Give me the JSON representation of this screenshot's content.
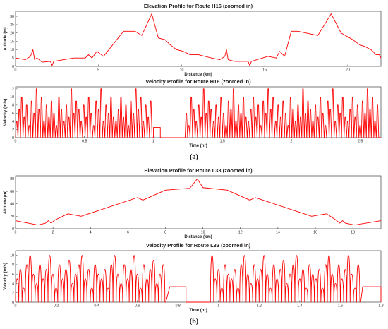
{
  "subfigure_labels": [
    "(a)",
    "(b)"
  ],
  "colors": {
    "series": "#ff0000",
    "axis": "#222222"
  },
  "chart_data": [
    {
      "type": "line",
      "title": "Elevation Profile for Route H16 (zoomed in)",
      "xlabel": "Distance (km)",
      "ylabel": "Altitude (m)",
      "xlim": [
        0,
        22
      ],
      "ylim": [
        0,
        33
      ],
      "xticks": [
        0,
        5,
        10,
        15,
        20
      ],
      "yticks": [
        0,
        5,
        10,
        15,
        20,
        25,
        30
      ],
      "grid": false,
      "series": [
        {
          "x": [
            0,
            0.6,
            0.9,
            1.05,
            1.15,
            1.3,
            1.6,
            2.1,
            2.2,
            2.3,
            3.5,
            4.2,
            4.4,
            4.6,
            4.9,
            5.3,
            6.5,
            7.2,
            7.6,
            8.2,
            8.6,
            9.0,
            9.3,
            9.7,
            10.1,
            10.5,
            11.0,
            11.8,
            12.3,
            12.6,
            12.7,
            12.8,
            13.2,
            14.0,
            14.1,
            14.2,
            15.2,
            15.7,
            15.9,
            16.2,
            16.6,
            17.0,
            18.2,
            19.0,
            19.6,
            20.3,
            20.7,
            21.0,
            21.4,
            21.7,
            21.9,
            22.0
          ],
          "y": [
            5,
            4,
            6,
            10,
            4,
            5,
            2.5,
            3,
            0.5,
            3,
            5,
            5,
            7,
            5,
            9,
            6,
            21,
            21,
            18.5,
            31.5,
            17,
            16,
            13,
            10,
            9,
            7,
            7,
            5,
            4,
            6,
            10,
            4,
            3,
            3,
            0.5,
            3,
            6,
            5,
            9,
            6,
            21,
            21,
            18.5,
            31.5,
            20,
            16,
            13,
            12,
            10,
            7,
            7,
            5
          ]
        }
      ]
    },
    {
      "type": "line",
      "title": "Velocity Profile for Route H16 (zoomed in)",
      "xlabel": "Time (hr)",
      "ylabel": "Velocity (m/s)",
      "xlim": [
        0,
        2.65
      ],
      "ylim": [
        0,
        12.5
      ],
      "xticks": [
        0,
        0.5,
        1,
        1.5,
        2,
        2.5
      ],
      "yticks": [
        0,
        2,
        4,
        6,
        8,
        10,
        12
      ],
      "grid": false,
      "series": [
        {
          "style": "spiky",
          "peaks": [
            4,
            7,
            10,
            5,
            8,
            3,
            9,
            6,
            12,
            7,
            10,
            4,
            8,
            5,
            9,
            6,
            3,
            10,
            7,
            4,
            8,
            5,
            12,
            6,
            9,
            7,
            4,
            8,
            5,
            10,
            6,
            3,
            9,
            7,
            12,
            4,
            8,
            6,
            10,
            5
          ],
          "segments": [
            [
              0.0,
              1.0
            ],
            [
              1.0,
              1.05,
              2.5
            ],
            [
              1.15,
              1.23,
              0
            ],
            [
              1.23,
              2.65
            ]
          ],
          "pulse_width": 0.018
        }
      ]
    },
    {
      "type": "line",
      "title": "Elevation Profile for Route L33 (zoomed in)",
      "xlabel": "Distance (km)",
      "ylabel": "Altitude (m)",
      "xlim": [
        0,
        19.5
      ],
      "ylim": [
        0,
        85
      ],
      "xticks": [
        0,
        2,
        4,
        6,
        8,
        10,
        12,
        14,
        16,
        18
      ],
      "yticks": [
        0,
        20,
        40,
        60,
        80
      ],
      "grid": false,
      "series": [
        {
          "x": [
            0,
            1.2,
            1.6,
            1.75,
            1.9,
            2.1,
            2.8,
            3.5,
            6.5,
            6.8,
            8.0,
            9.3,
            9.7,
            10.0,
            11.3,
            12.5,
            12.8,
            15.8,
            16.6,
            17.1,
            17.3,
            17.45,
            17.6,
            18.1,
            19.5
          ],
          "y": [
            13,
            6,
            9,
            13,
            9,
            14,
            24,
            20,
            50,
            46,
            62,
            65,
            80,
            66,
            62,
            46,
            50,
            20,
            24,
            14,
            9,
            13,
            9,
            6,
            13
          ]
        }
      ]
    },
    {
      "type": "line",
      "title": "Velocity Profile for Route L33 (zoomed in)",
      "xlabel": "Time (hr)",
      "ylabel": "Velocity (m/s)",
      "xlim": [
        0,
        1.8
      ],
      "ylim": [
        0,
        11
      ],
      "xticks": [
        0,
        0.2,
        0.4,
        0.6,
        0.8,
        1,
        1.2,
        1.4,
        1.6,
        1.8
      ],
      "yticks": [
        0,
        2,
        4,
        6,
        8,
        10
      ],
      "grid": false,
      "series": [
        {
          "style": "rounded",
          "peaks": [
            5,
            7,
            3,
            8,
            10,
            6,
            4,
            8,
            5,
            7,
            10,
            6,
            3,
            8,
            5,
            7,
            9,
            4,
            6,
            8,
            10,
            5,
            7,
            3,
            8,
            6
          ],
          "segments": [
            [
              0.0,
              0.74
            ],
            [
              0.76,
              0.84,
              3.3
            ],
            [
              0.84,
              0.96,
              0
            ],
            [
              0.96,
              1.7
            ],
            [
              1.71,
              1.8,
              3.3
            ]
          ],
          "pulse_width": 0.016
        }
      ]
    }
  ]
}
